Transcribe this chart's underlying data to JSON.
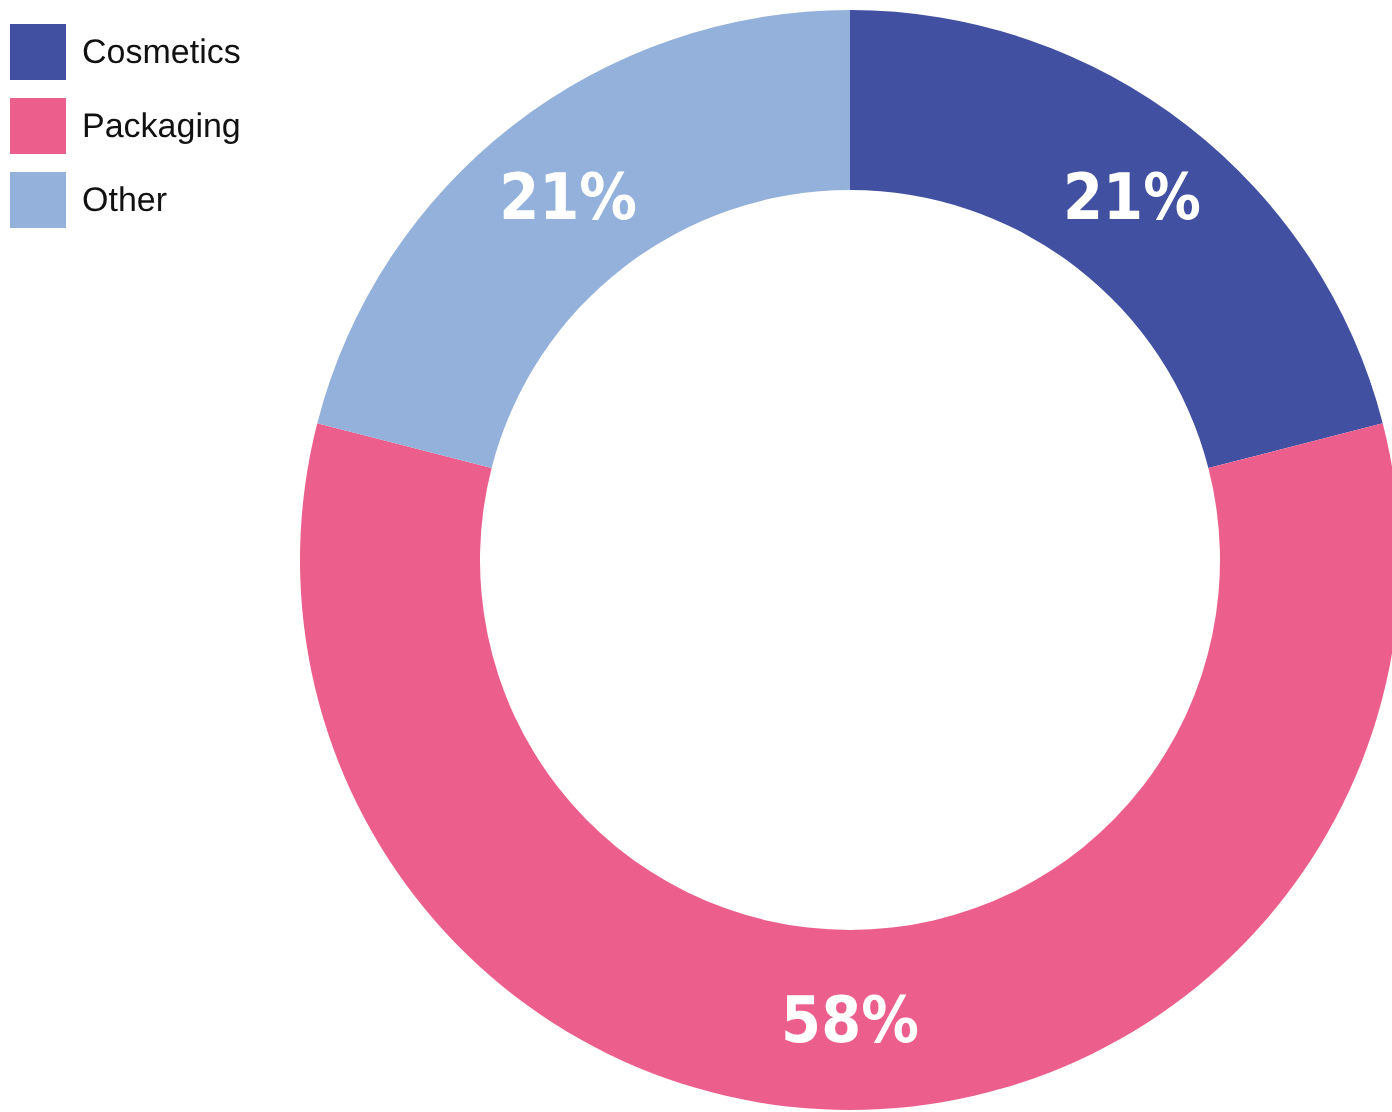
{
  "chart_data": {
    "type": "donut",
    "categories": [
      "Cosmetics",
      "Packaging",
      "Other"
    ],
    "values": [
      21,
      58,
      21
    ],
    "colors": [
      "#4150a0",
      "#ec5f8d",
      "#93b1da"
    ],
    "value_labels": [
      "21%",
      "58%",
      "21%"
    ],
    "legend": "top left"
  }
}
